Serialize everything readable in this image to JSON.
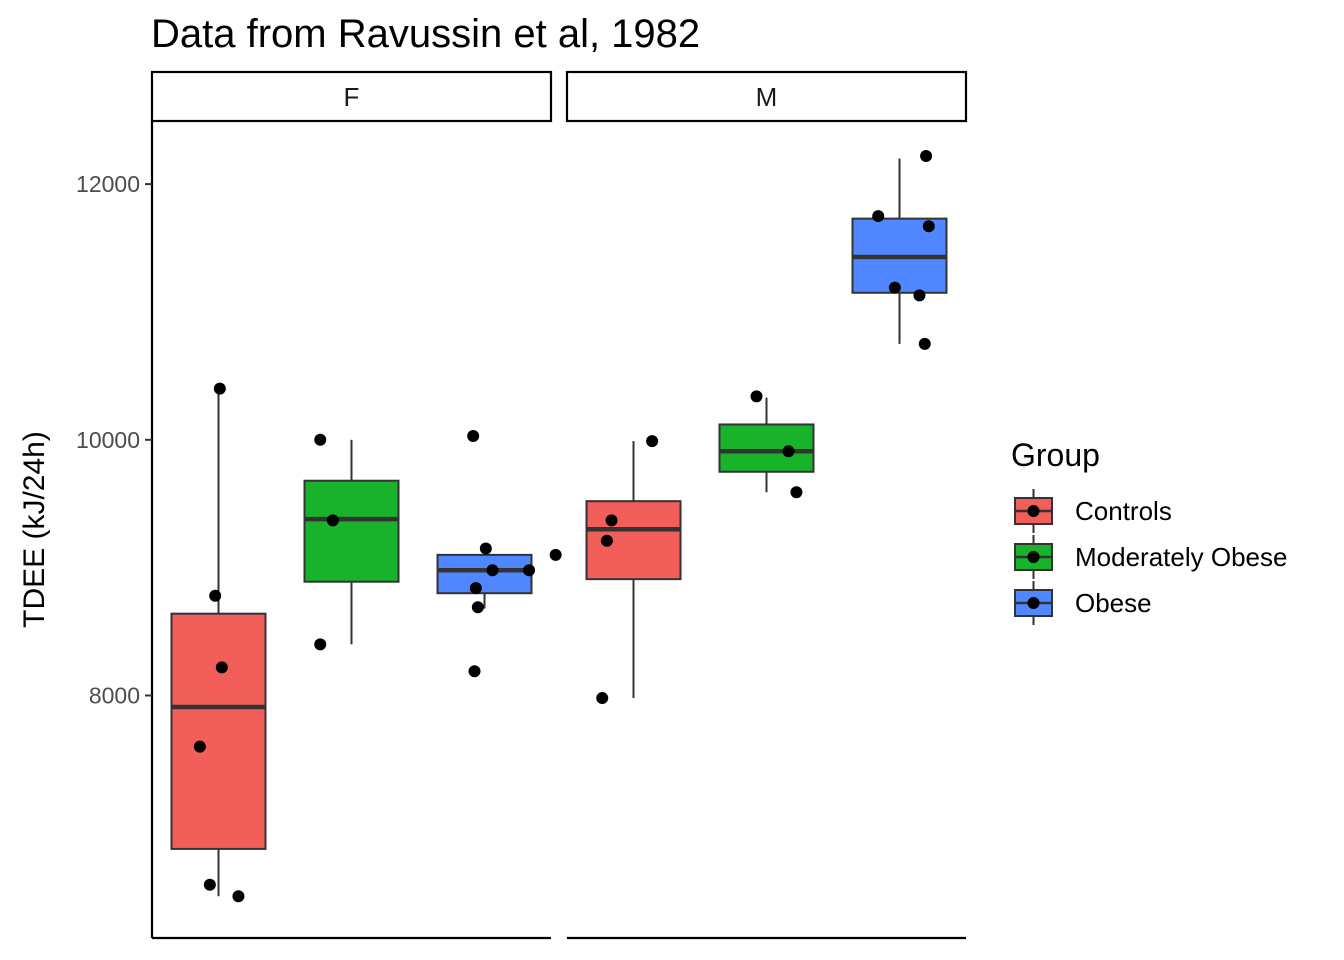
{
  "chart_data": {
    "type": "boxplot",
    "title": "Data from Ravussin et al, 1982",
    "ylabel": "TDEE (kJ/24h)",
    "xlabel": "",
    "ylim": [
      6250,
      12500
    ],
    "yticks": [
      8000,
      10000,
      12000
    ],
    "grid": false,
    "legend": {
      "title": "Group",
      "position": "right"
    },
    "facets": [
      "F",
      "M"
    ],
    "groups": [
      {
        "name": "Controls",
        "color": "#F25E5A"
      },
      {
        "name": "Moderately Obese",
        "color": "#19B22B"
      },
      {
        "name": "Obese",
        "color": "#5086FF"
      }
    ],
    "boxes": [
      {
        "facet": "F",
        "group": "Controls",
        "lower_whisker": 6430,
        "q1": 6800,
        "median": 7910,
        "q3": 8640,
        "upper_whisker": 10400,
        "points": [
          [
            -0.28,
            7600
          ],
          [
            -0.13,
            6520
          ],
          [
            -0.05,
            8780
          ],
          [
            0.05,
            8220
          ],
          [
            0.02,
            10400
          ],
          [
            0.3,
            6430
          ]
        ]
      },
      {
        "facet": "F",
        "group": "Moderately Obese",
        "lower_whisker": 8400,
        "q1": 8890,
        "median": 9380,
        "q3": 9680,
        "upper_whisker": 10000,
        "points": [
          [
            -0.47,
            10000
          ],
          [
            -0.47,
            8400
          ],
          [
            -0.28,
            9370
          ]
        ]
      },
      {
        "facet": "F",
        "group": "Obese",
        "lower_whisker": 8680,
        "q1": 8800,
        "median": 8980,
        "q3": 9100,
        "upper_whisker": 9150,
        "points": [
          [
            -0.17,
            10030
          ],
          [
            -0.13,
            8840
          ],
          [
            -0.1,
            8690
          ],
          [
            -0.15,
            8190
          ],
          [
            0.02,
            9150
          ],
          [
            0.12,
            8980
          ],
          [
            0.67,
            8980
          ],
          [
            1.07,
            9100
          ]
        ]
      },
      {
        "facet": "M",
        "group": "Controls",
        "lower_whisker": 7980,
        "q1": 8910,
        "median": 9300,
        "q3": 9520,
        "upper_whisker": 9990,
        "points": [
          [
            -0.47,
            7980
          ],
          [
            -0.4,
            9210
          ],
          [
            -0.33,
            9370
          ],
          [
            0.28,
            9990
          ]
        ]
      },
      {
        "facet": "M",
        "group": "Moderately Obese",
        "lower_whisker": 9590,
        "q1": 9750,
        "median": 9910,
        "q3": 10120,
        "upper_whisker": 10330,
        "points": [
          [
            -0.15,
            10340
          ],
          [
            0.33,
            9910
          ],
          [
            0.45,
            9590
          ]
        ]
      },
      {
        "facet": "M",
        "group": "Obese",
        "lower_whisker": 10750,
        "q1": 11150,
        "median": 11430,
        "q3": 11730,
        "upper_whisker": 12200,
        "points": [
          [
            -0.32,
            11750
          ],
          [
            -0.07,
            11190
          ],
          [
            0.3,
            11130
          ],
          [
            0.4,
            12220
          ],
          [
            0.44,
            11670
          ],
          [
            0.38,
            10750
          ]
        ]
      }
    ]
  }
}
